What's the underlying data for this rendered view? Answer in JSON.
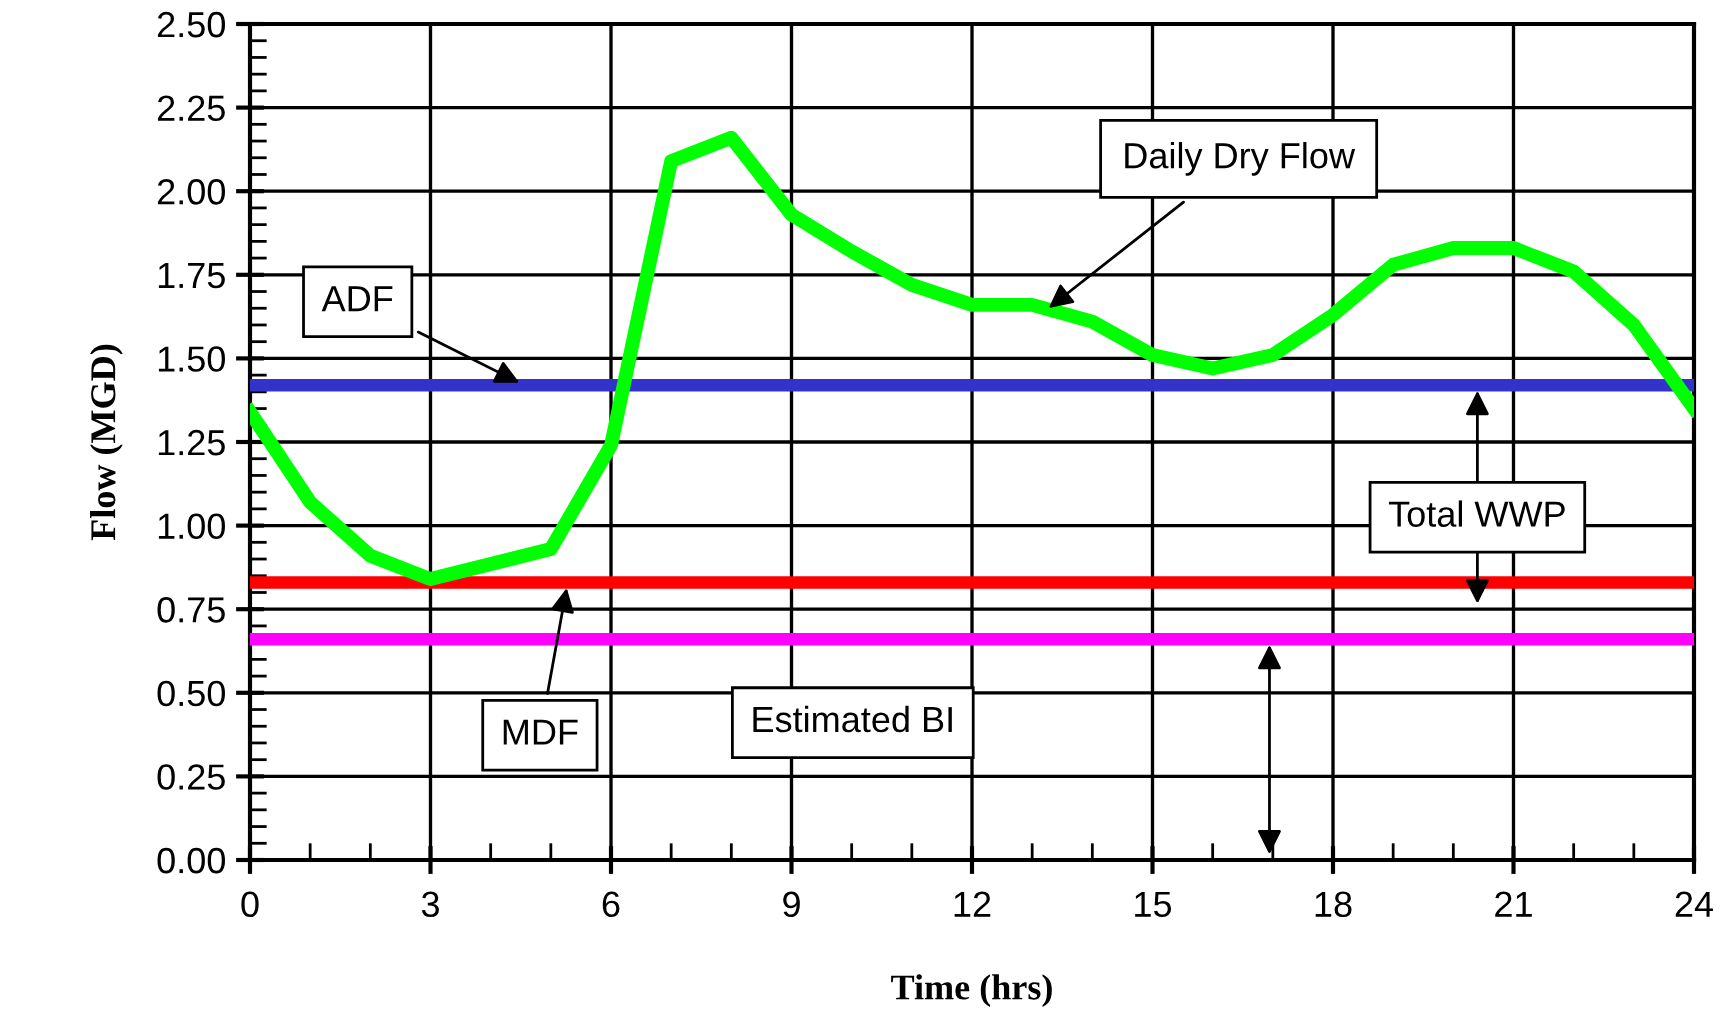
{
  "chart_data": {
    "type": "line",
    "xlabel": "Time (hrs)",
    "ylabel": "Flow (MGD)",
    "x": [
      0,
      1,
      2,
      3,
      4,
      5,
      6,
      7,
      8,
      9,
      10,
      11,
      12,
      13,
      14,
      15,
      16,
      17,
      18,
      19,
      20,
      21,
      22,
      23,
      24
    ],
    "series": [
      {
        "name": "Daily Dry Flow",
        "color": "#00ff00",
        "values": [
          1.34,
          1.07,
          0.91,
          0.84,
          null,
          0.93,
          1.24,
          2.09,
          2.16,
          1.93,
          1.82,
          1.72,
          1.66,
          1.66,
          1.61,
          1.51,
          1.47,
          1.51,
          1.63,
          1.78,
          1.83,
          1.83,
          1.76,
          1.6,
          1.35
        ]
      }
    ],
    "ref_lines": [
      {
        "axis": "y",
        "value": 1.42,
        "label": "ADF",
        "color": "#3333cc"
      },
      {
        "axis": "y",
        "value": 0.83,
        "label": "MDF",
        "color": "#ff0000"
      },
      {
        "axis": "y",
        "value": 0.66,
        "label": "Estimated BI",
        "color": "#ff00ff"
      }
    ],
    "annotations": [
      "Total WWP"
    ],
    "xlim": [
      0,
      24
    ],
    "xticks": [
      0,
      3,
      6,
      9,
      12,
      15,
      18,
      21,
      24
    ],
    "ylim": [
      0,
      2.5
    ],
    "yticks": [
      {
        "value": 0,
        "label": "0.00"
      },
      {
        "value": 0.25,
        "label": "0.25"
      },
      {
        "value": 0.5,
        "label": "0.50"
      },
      {
        "value": 0.75,
        "label": "0.75"
      },
      {
        "value": 1,
        "label": "1.00"
      },
      {
        "value": 1.25,
        "label": "1.25"
      },
      {
        "value": 1.5,
        "label": "1.50"
      },
      {
        "value": 1.75,
        "label": "1.75"
      },
      {
        "value": 2,
        "label": "2.00"
      },
      {
        "value": 2.25,
        "label": "2.25"
      },
      {
        "value": 2.5,
        "label": "2.50"
      }
    ],
    "grid": true,
    "legend": false,
    "marker": "none",
    "line_style": "solid"
  }
}
